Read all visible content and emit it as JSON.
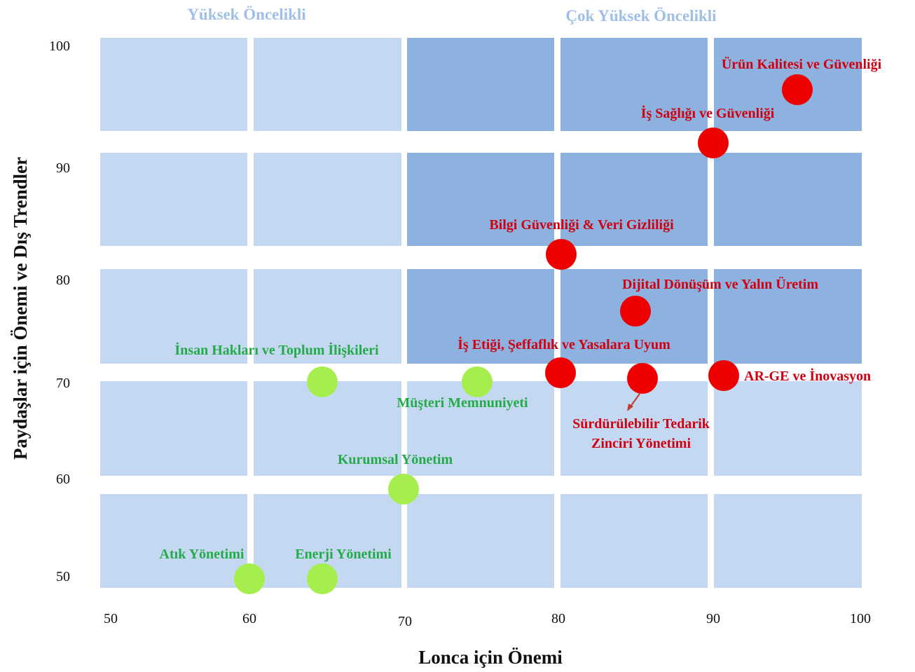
{
  "chart_data": {
    "type": "scatter",
    "title": "",
    "xlabel": "Lonca için Önemi",
    "ylabel": "Paydaşlar için Önemi ve Dış Trendler",
    "xlim": [
      50,
      100
    ],
    "ylim": [
      50,
      100
    ],
    "x_ticks": [
      50,
      60,
      70,
      80,
      90,
      100
    ],
    "y_ticks": [
      50,
      60,
      70,
      80,
      90,
      100
    ],
    "quadrant_labels": [
      {
        "text": "Yüksek Öncelikli",
        "region": "top-left"
      },
      {
        "text": "Çok Yüksek Öncelikli",
        "region": "top-right"
      }
    ],
    "colors": {
      "high_priority_point": "#ee0000",
      "medium_priority_point": "#a6ee4d",
      "high_label": "#d00010",
      "medium_label": "#23ab48",
      "tile_light": "#c5d8f1",
      "tile_dark": "#8eb2e0",
      "quadrant_label": "#9fbfe8"
    },
    "points": [
      {
        "label": "Ürün Kalitesi ve Güvenliği",
        "x": 96,
        "y": 96,
        "group": "high"
      },
      {
        "label": "İş Sağlığı ve Güvenliği",
        "x": 90,
        "y": 92,
        "group": "high"
      },
      {
        "label": "Bilgi Güvenliği & Veri Gizliliği",
        "x": 80,
        "y": 82,
        "group": "high"
      },
      {
        "label": "Dijital Dönüşüm ve Yalın Üretim",
        "x": 85,
        "y": 77,
        "group": "high"
      },
      {
        "label": "İş Etiği, Şeffaflık ve Yasalara Uyum",
        "x": 80,
        "y": 71,
        "group": "high"
      },
      {
        "label": "Sürdürülebilir Tedarik Zinciri Yönetimi",
        "x": 85.5,
        "y": 70.5,
        "group": "high"
      },
      {
        "label": "AR-GE ve İnovasyon",
        "x": 91,
        "y": 70.5,
        "group": "high"
      },
      {
        "label": "İnsan Hakları ve Toplum İlişkileri",
        "x": 65,
        "y": 70,
        "group": "medium"
      },
      {
        "label": "Müşteri Memnuniyeti",
        "x": 75,
        "y": 70,
        "group": "medium"
      },
      {
        "label": "Kurumsal Yönetim",
        "x": 70,
        "y": 59,
        "group": "medium"
      },
      {
        "label": "Atık Yönetimi",
        "x": 60,
        "y": 50,
        "group": "medium"
      },
      {
        "label": "Enerji Yönetimi",
        "x": 65,
        "y": 50,
        "group": "medium"
      }
    ]
  }
}
